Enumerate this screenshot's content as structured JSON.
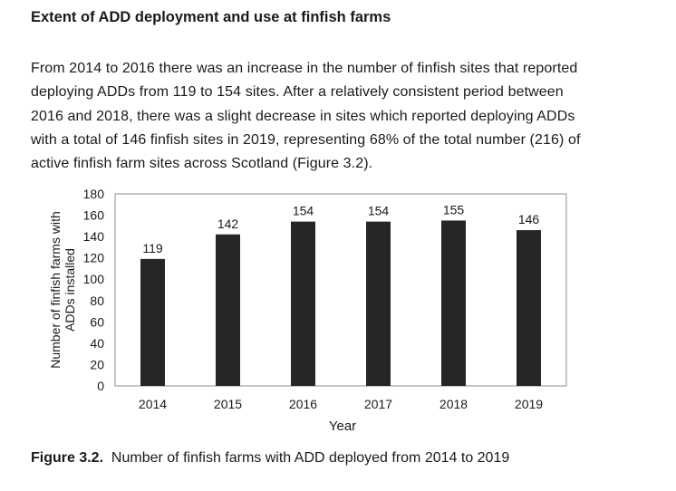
{
  "heading": "Extent of ADD deployment and use at finfish farms",
  "paragraph_lines": [
    "From 2014 to 2016 there was an increase in the number of finfish sites that reported",
    "deploying ADDs from 119 to 154 sites. After a relatively consistent period between",
    "2016 and 2018, there was a slight decrease in sites which reported deploying ADDs",
    "with a total of 146 finfish sites in 2019, representing 68% of the total number (216) of",
    "active finfish farm sites across Scotland (Figure 3.2)."
  ],
  "caption": {
    "label": "Figure 3.2.",
    "text": "Number of finfish farms with ADD deployed from 2014 to 2019"
  },
  "chart_data": {
    "type": "bar",
    "categories": [
      "2014",
      "2015",
      "2016",
      "2017",
      "2018",
      "2019"
    ],
    "values": [
      119,
      142,
      154,
      154,
      155,
      146
    ],
    "data_labels": [
      "119",
      "142",
      "154",
      "154",
      "155",
      "146"
    ],
    "title": "",
    "xlabel": "Year",
    "ylabel_lines": [
      "Number of finfish farms with",
      "ADDs installed"
    ],
    "ylim": [
      0,
      180
    ],
    "yticks": [
      "0",
      "20",
      "40",
      "60",
      "80",
      "100",
      "120",
      "140",
      "160",
      "180"
    ],
    "bar_color": "#262626",
    "grid": false
  }
}
